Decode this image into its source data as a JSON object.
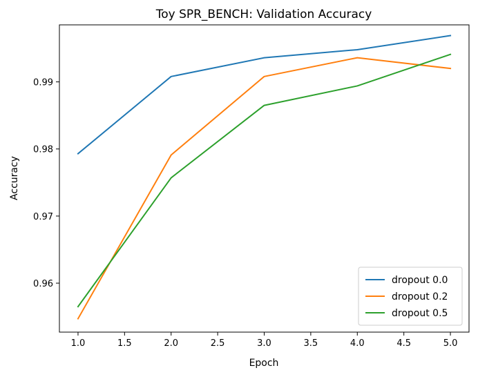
{
  "chart_data": {
    "type": "line",
    "title": "Toy SPR_BENCH: Validation Accuracy",
    "xlabel": "Epoch",
    "ylabel": "Accuracy",
    "x": [
      1,
      2,
      3,
      4,
      5
    ],
    "xlim": [
      0.8,
      5.2
    ],
    "ylim": [
      0.9527,
      0.9985
    ],
    "xticks": [
      1.0,
      1.5,
      2.0,
      2.5,
      3.0,
      3.5,
      4.0,
      4.5,
      5.0
    ],
    "xtick_labels": [
      "1.0",
      "1.5",
      "2.0",
      "2.5",
      "3.0",
      "3.5",
      "4.0",
      "4.5",
      "5.0"
    ],
    "yticks": [
      0.96,
      0.97,
      0.98,
      0.99
    ],
    "ytick_labels": [
      "0.96",
      "0.97",
      "0.98",
      "0.99"
    ],
    "grid": false,
    "legend_position": "lower-right",
    "series": [
      {
        "name": "dropout 0.0",
        "color": "#1f77b4",
        "values": [
          0.9793,
          0.9908,
          0.9936,
          0.9948,
          0.9969
        ]
      },
      {
        "name": "dropout 0.2",
        "color": "#ff7f0e",
        "values": [
          0.9547,
          0.9791,
          0.9908,
          0.9936,
          0.992
        ]
      },
      {
        "name": "dropout 0.5",
        "color": "#2ca02c",
        "values": [
          0.9565,
          0.9757,
          0.9865,
          0.9894,
          0.9941
        ]
      }
    ]
  }
}
